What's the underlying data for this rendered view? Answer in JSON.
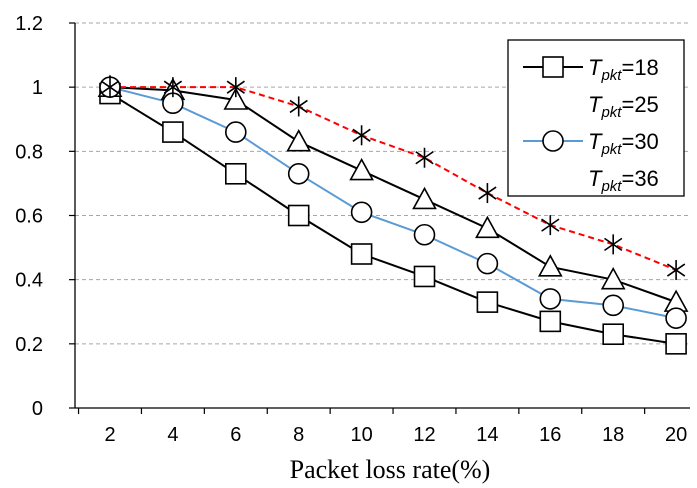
{
  "chart_data": {
    "type": "line",
    "xlabel": "Packet loss rate(%)",
    "ylabel": "",
    "x": [
      2,
      4,
      6,
      8,
      10,
      12,
      14,
      16,
      18,
      20
    ],
    "xticks": [
      "2",
      "4",
      "6",
      "8",
      "10",
      "12",
      "14",
      "16",
      "18",
      "20"
    ],
    "yticks": [
      "0",
      "0.2",
      "0.4",
      "0.6",
      "0.8",
      "1",
      "1.2"
    ],
    "ylim": [
      0,
      1.2
    ],
    "grid": "horizontal dashed",
    "legend_position": "top-right",
    "series": [
      {
        "name": "T_pkt=18",
        "legend_main": "T",
        "legend_sub": "pkt",
        "legend_val": "=18",
        "marker": "square",
        "color": "#000000",
        "dash": "solid",
        "values": [
          0.98,
          0.86,
          0.73,
          0.6,
          0.48,
          0.41,
          0.33,
          0.27,
          0.23,
          0.2
        ]
      },
      {
        "name": "T_pkt=25",
        "legend_main": "T",
        "legend_sub": "pkt",
        "legend_val": "=25",
        "marker": "triangle",
        "color": "#000000",
        "dash": "solid",
        "values": [
          1.0,
          0.99,
          0.96,
          0.83,
          0.74,
          0.65,
          0.56,
          0.44,
          0.4,
          0.33
        ]
      },
      {
        "name": "T_pkt=30",
        "legend_main": "T",
        "legend_sub": "pkt",
        "legend_val": "=30",
        "marker": "circle",
        "color": "#5b9bd5",
        "dash": "solid",
        "values": [
          1.0,
          0.95,
          0.86,
          0.73,
          0.61,
          0.54,
          0.45,
          0.34,
          0.32,
          0.28
        ]
      },
      {
        "name": "T_pkt=36",
        "legend_main": "T",
        "legend_sub": "pkt",
        "legend_val": "=36",
        "marker": "star",
        "color": "#ff0000",
        "dash": "dashed",
        "values": [
          1.0,
          1.0,
          1.0,
          0.94,
          0.85,
          0.78,
          0.67,
          0.57,
          0.51,
          0.43
        ]
      }
    ]
  }
}
